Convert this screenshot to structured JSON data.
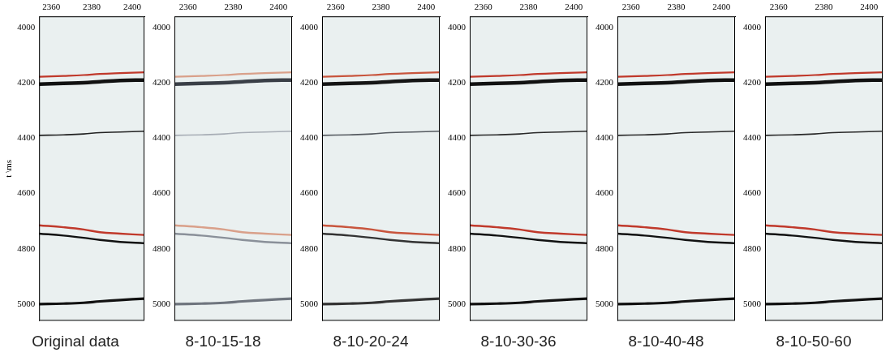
{
  "chart_data": [
    {
      "type": "line",
      "title": "Original data",
      "y_label": "t \\ms",
      "x": [
        2354,
        2366,
        2376,
        2384,
        2394,
        2406
      ],
      "xlim": [
        2354,
        2406
      ],
      "xticks": [
        2360,
        2380,
        2400
      ],
      "ylim": [
        3960,
        5060
      ],
      "yticks": [
        4000,
        4200,
        4400,
        4600,
        4800,
        5000
      ],
      "grid": false,
      "series": [
        {
          "color": "#c0392b",
          "values": [
            4178,
            4175,
            4172,
            4168,
            4165,
            4162
          ]
        },
        {
          "color": "#111111",
          "values": [
            4205,
            4202,
            4200,
            4196,
            4192,
            4190
          ]
        },
        {
          "color": "#222222",
          "values": [
            4390,
            4388,
            4385,
            4380,
            4378,
            4375
          ]
        },
        {
          "color": "#c0392b",
          "values": [
            4715,
            4722,
            4730,
            4740,
            4745,
            4750
          ]
        },
        {
          "color": "#111111",
          "values": [
            4745,
            4752,
            4760,
            4768,
            4775,
            4780
          ]
        },
        {
          "color": "#111111",
          "values": [
            5000,
            4998,
            4995,
            4990,
            4985,
            4980
          ]
        }
      ]
    },
    {
      "type": "line",
      "title": "8-10-15-18",
      "x": [
        2354,
        2366,
        2376,
        2384,
        2394,
        2406
      ],
      "xlim": [
        2354,
        2406
      ],
      "xticks": [
        2360,
        2380,
        2400
      ],
      "ylim": [
        3960,
        5060
      ],
      "yticks": [
        4000,
        4200,
        4400,
        4600,
        4800,
        5000
      ],
      "grid": false,
      "series": [
        {
          "color": "#d9a08a",
          "values": [
            4178,
            4175,
            4172,
            4168,
            4165,
            4162
          ]
        },
        {
          "color": "#3a3f47",
          "values": [
            4205,
            4202,
            4200,
            4196,
            4192,
            4190
          ]
        },
        {
          "color": "#a7adb5",
          "values": [
            4390,
            4388,
            4385,
            4380,
            4378,
            4375
          ]
        },
        {
          "color": "#d9a08a",
          "values": [
            4715,
            4722,
            4730,
            4740,
            4745,
            4750
          ]
        },
        {
          "color": "#8a9099",
          "values": [
            4745,
            4752,
            4760,
            4768,
            4775,
            4780
          ]
        },
        {
          "color": "#6f757e",
          "values": [
            5000,
            4998,
            4995,
            4990,
            4985,
            4980
          ]
        }
      ]
    },
    {
      "type": "line",
      "title": "8-10-20-24",
      "x": [
        2354,
        2366,
        2376,
        2384,
        2394,
        2406
      ],
      "xlim": [
        2354,
        2406
      ],
      "xticks": [
        2360,
        2380,
        2400
      ],
      "ylim": [
        3960,
        5060
      ],
      "yticks": [
        4000,
        4200,
        4400,
        4600,
        4800,
        5000
      ],
      "grid": false,
      "series": [
        {
          "color": "#c8553d",
          "values": [
            4178,
            4175,
            4172,
            4168,
            4165,
            4162
          ]
        },
        {
          "color": "#151515",
          "values": [
            4205,
            4202,
            4200,
            4196,
            4192,
            4190
          ]
        },
        {
          "color": "#555a60",
          "values": [
            4390,
            4388,
            4385,
            4380,
            4378,
            4375
          ]
        },
        {
          "color": "#c8553d",
          "values": [
            4715,
            4722,
            4730,
            4740,
            4745,
            4750
          ]
        },
        {
          "color": "#333333",
          "values": [
            4745,
            4752,
            4760,
            4768,
            4775,
            4780
          ]
        },
        {
          "color": "#333333",
          "values": [
            5000,
            4998,
            4995,
            4990,
            4985,
            4980
          ]
        }
      ]
    },
    {
      "type": "line",
      "title": "8-10-30-36",
      "x": [
        2354,
        2366,
        2376,
        2384,
        2394,
        2406
      ],
      "xlim": [
        2354,
        2406
      ],
      "xticks": [
        2360,
        2380,
        2400
      ],
      "ylim": [
        3960,
        5060
      ],
      "yticks": [
        4000,
        4200,
        4400,
        4600,
        4800,
        5000
      ],
      "grid": false,
      "series": [
        {
          "color": "#c0392b",
          "values": [
            4178,
            4175,
            4172,
            4168,
            4165,
            4162
          ]
        },
        {
          "color": "#111111",
          "values": [
            4205,
            4202,
            4200,
            4196,
            4192,
            4190
          ]
        },
        {
          "color": "#2a2a2a",
          "values": [
            4390,
            4388,
            4385,
            4380,
            4378,
            4375
          ]
        },
        {
          "color": "#c0392b",
          "values": [
            4715,
            4722,
            4730,
            4740,
            4745,
            4750
          ]
        },
        {
          "color": "#111111",
          "values": [
            4745,
            4752,
            4760,
            4768,
            4775,
            4780
          ]
        },
        {
          "color": "#111111",
          "values": [
            5000,
            4998,
            4995,
            4990,
            4985,
            4980
          ]
        }
      ]
    },
    {
      "type": "line",
      "title": "8-10-40-48",
      "x": [
        2354,
        2366,
        2376,
        2384,
        2394,
        2406
      ],
      "xlim": [
        2354,
        2406
      ],
      "xticks": [
        2360,
        2380,
        2400
      ],
      "ylim": [
        3960,
        5060
      ],
      "yticks": [
        4000,
        4200,
        4400,
        4600,
        4800,
        5000
      ],
      "grid": false,
      "series": [
        {
          "color": "#c0392b",
          "values": [
            4178,
            4175,
            4172,
            4168,
            4165,
            4162
          ]
        },
        {
          "color": "#111111",
          "values": [
            4205,
            4202,
            4200,
            4196,
            4192,
            4190
          ]
        },
        {
          "color": "#2a2a2a",
          "values": [
            4390,
            4388,
            4385,
            4380,
            4378,
            4375
          ]
        },
        {
          "color": "#c0392b",
          "values": [
            4715,
            4722,
            4730,
            4740,
            4745,
            4750
          ]
        },
        {
          "color": "#111111",
          "values": [
            4745,
            4752,
            4760,
            4768,
            4775,
            4780
          ]
        },
        {
          "color": "#111111",
          "values": [
            5000,
            4998,
            4995,
            4990,
            4985,
            4980
          ]
        }
      ]
    },
    {
      "type": "line",
      "title": "8-10-50-60",
      "x": [
        2354,
        2366,
        2376,
        2384,
        2394,
        2406
      ],
      "xlim": [
        2354,
        2406
      ],
      "xticks": [
        2360,
        2380,
        2400
      ],
      "ylim": [
        3960,
        5060
      ],
      "yticks": [
        4000,
        4200,
        4400,
        4600,
        4800,
        5000
      ],
      "grid": false,
      "series": [
        {
          "color": "#c0392b",
          "values": [
            4178,
            4175,
            4172,
            4168,
            4165,
            4162
          ]
        },
        {
          "color": "#111111",
          "values": [
            4205,
            4202,
            4200,
            4196,
            4192,
            4190
          ]
        },
        {
          "color": "#2a2a2a",
          "values": [
            4390,
            4388,
            4385,
            4380,
            4378,
            4375
          ]
        },
        {
          "color": "#c0392b",
          "values": [
            4715,
            4722,
            4730,
            4740,
            4745,
            4750
          ]
        },
        {
          "color": "#111111",
          "values": [
            4745,
            4752,
            4760,
            4768,
            4775,
            4780
          ]
        },
        {
          "color": "#111111",
          "values": [
            5000,
            4998,
            4995,
            4990,
            4985,
            4980
          ]
        }
      ]
    }
  ]
}
